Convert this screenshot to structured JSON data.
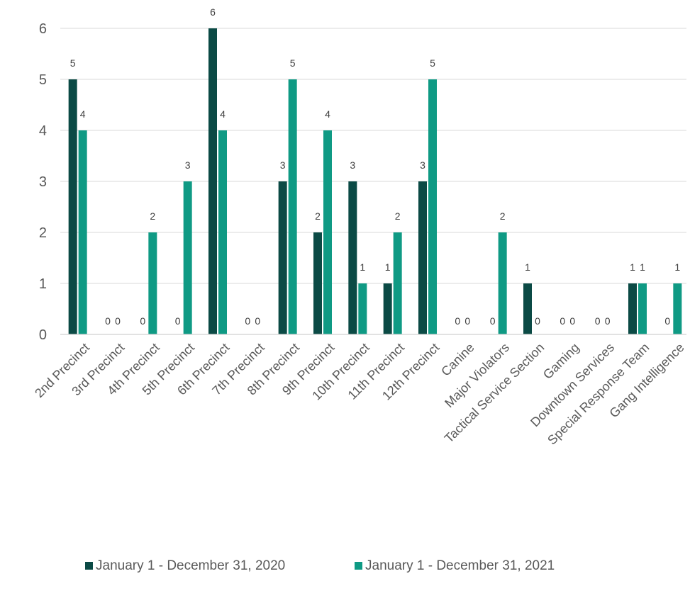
{
  "chart_data": {
    "type": "bar",
    "title": "",
    "xlabel": "",
    "ylabel": "",
    "ylim": [
      0,
      6
    ],
    "yticks": [
      0,
      1,
      2,
      3,
      4,
      5,
      6
    ],
    "grid": true,
    "legend_position": "bottom",
    "categories": [
      "2nd Precinct",
      "3rd Precinct",
      "4th Precinct",
      "5th Precinct",
      "6th Precinct",
      "7th Precinct",
      "8th Precinct",
      "9th Precinct",
      "10th Precinct",
      "11th Precinct",
      "12th Precinct",
      "Canine",
      "Major Violators",
      "Tactical Service Section",
      "Gaming",
      "Downtown Services",
      "Special Response Team",
      "Gang Intelligence"
    ],
    "series": [
      {
        "name": "January 1 - December 31, 2020",
        "color": "#0b4a45",
        "values": [
          5,
          0,
          0,
          0,
          6,
          0,
          3,
          2,
          3,
          1,
          3,
          0,
          0,
          1,
          0,
          0,
          1,
          0
        ]
      },
      {
        "name": "January 1 - December 31, 2021",
        "color": "#0f9a84",
        "values": [
          4,
          0,
          2,
          3,
          4,
          0,
          5,
          4,
          1,
          2,
          5,
          0,
          2,
          0,
          0,
          0,
          1,
          1
        ]
      }
    ]
  }
}
